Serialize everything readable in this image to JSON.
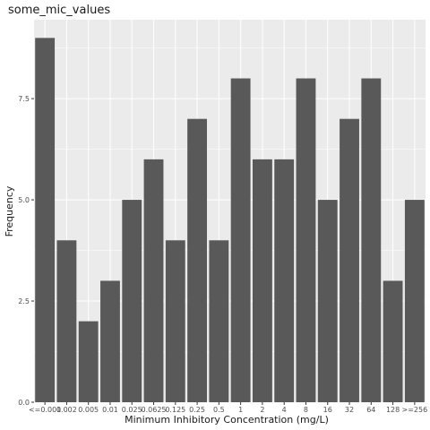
{
  "chart_data": {
    "type": "bar",
    "title": "some_mic_values",
    "xlabel": "Minimum Inhibitory Concentration (mg/L)",
    "ylabel": "Frequency",
    "categories": [
      "<=0.001",
      "0.002",
      "0.005",
      "0.01",
      "0.025",
      "0.0625",
      "0.125",
      "0.25",
      "0.5",
      "1",
      "2",
      "4",
      "8",
      "16",
      "32",
      "64",
      "128",
      ">=256"
    ],
    "values": [
      9,
      4,
      2,
      3,
      5,
      6,
      4,
      7,
      4,
      8,
      6,
      6,
      8,
      5,
      7,
      8,
      3,
      5
    ],
    "ylim": [
      0,
      9.45
    ],
    "yticks": [
      0,
      2.5,
      5,
      7.5
    ],
    "ytick_labels": [
      "0.0",
      "2.5",
      "5.0",
      "7.5"
    ],
    "grid": true,
    "colors": {
      "panel_background": "#ebebeb",
      "gridline": "#ffffff",
      "bar_fill": "#595959",
      "tick_color": "#333333"
    }
  }
}
